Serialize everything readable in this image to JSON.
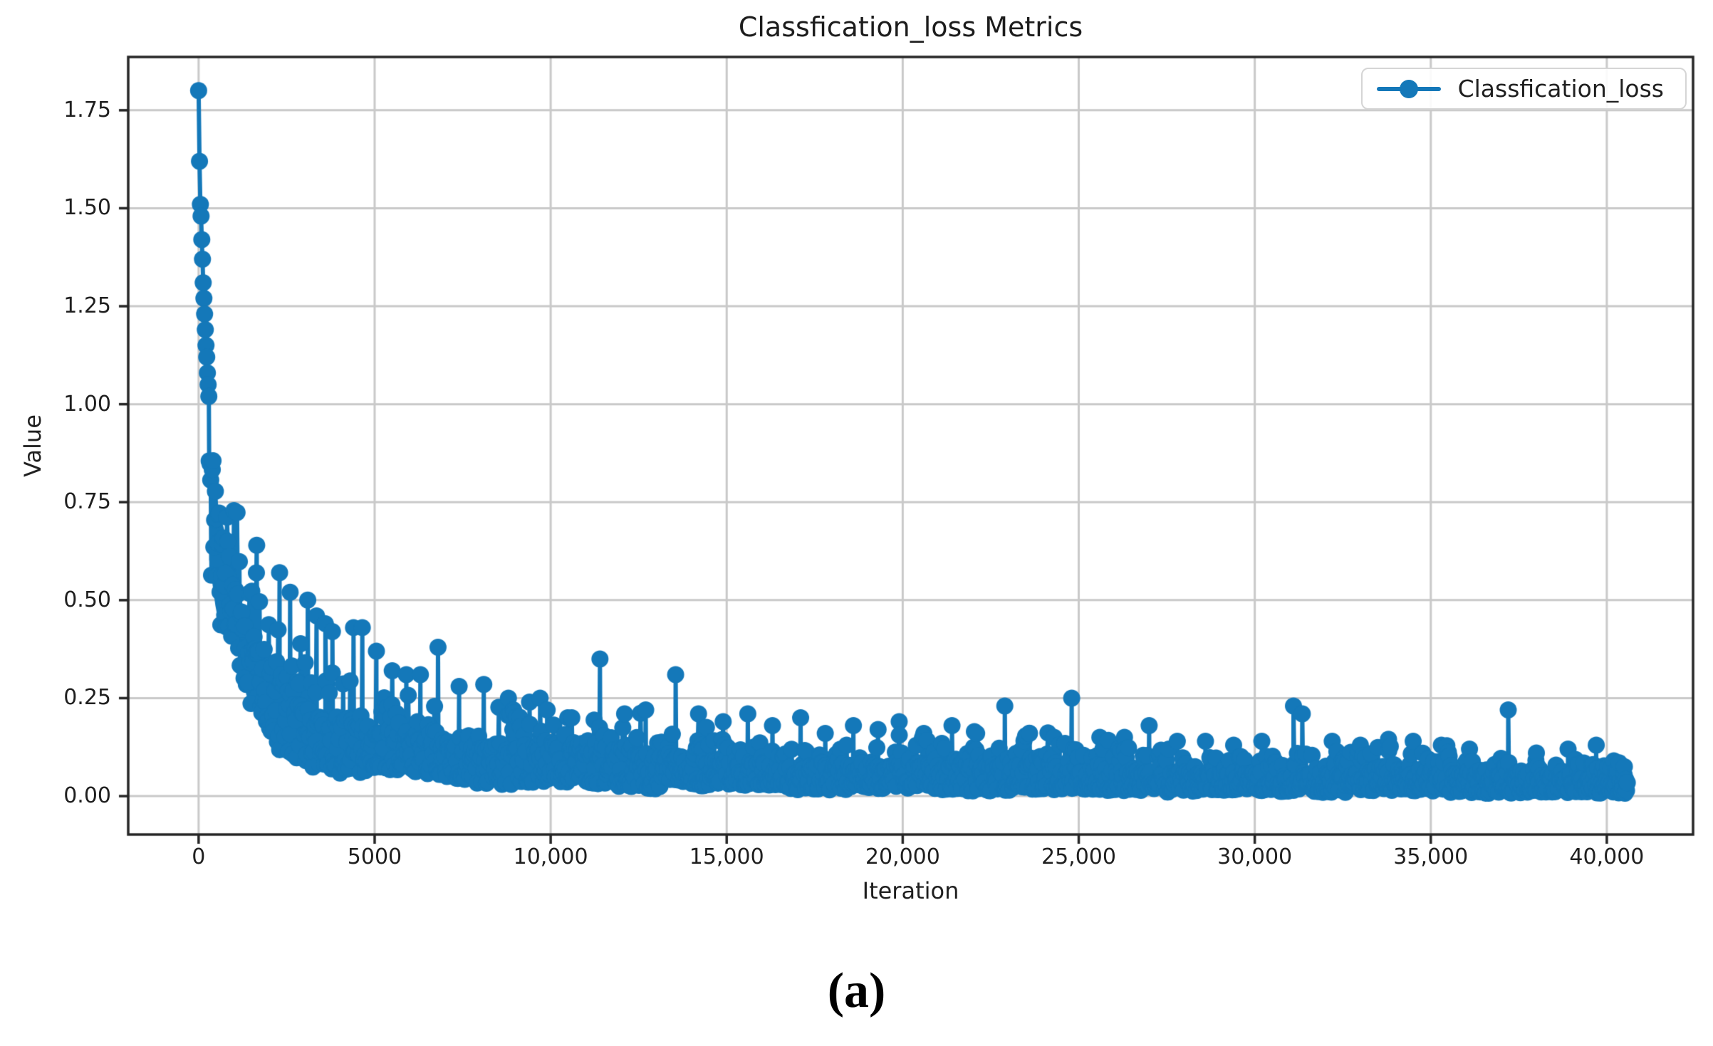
{
  "figure": {
    "title": "Classfication_loss Metrics",
    "caption": "(a)",
    "xlabel": "Iteration",
    "ylabel": "Value"
  },
  "legend": {
    "label": "Classfication_loss",
    "position": "upper right"
  },
  "chart_data": {
    "type": "line",
    "title": "Classfication_loss Metrics",
    "xlabel": "Iteration",
    "ylabel": "Value",
    "legend_entries": [
      "Classfication_loss"
    ],
    "grid": true,
    "xlim": [
      -2000,
      42450
    ],
    "ylim": [
      -0.098,
      1.886
    ],
    "x_ticks": {
      "values": [
        0,
        5000,
        10000,
        15000,
        20000,
        25000,
        30000,
        35000,
        40000
      ],
      "labels": [
        "0",
        "5000",
        "10,000",
        "15,000",
        "20,000",
        "25,000",
        "30,000",
        "35,000",
        "40,000"
      ]
    },
    "y_ticks": {
      "values": [
        0.0,
        0.25,
        0.5,
        0.75,
        1.0,
        1.25,
        1.5,
        1.75
      ],
      "labels": [
        "0.00",
        "0.25",
        "0.50",
        "0.75",
        "1.00",
        "1.25",
        "1.50",
        "1.75"
      ]
    },
    "colors": {
      "line": "#1478b9",
      "grid": "#c9c9c9",
      "axis": "#262626",
      "text": "#1f1f1f"
    },
    "series": [
      {
        "name": "Classfication_loss",
        "color": "#1478b9",
        "marker": "o",
        "marker_radius": 12,
        "line_width": 6,
        "x_start": 0,
        "x_end": 40600,
        "sample_step": 22,
        "seed": 7,
        "initial_points": [
          [
            0,
            1.8
          ],
          [
            25,
            1.62
          ],
          [
            50,
            1.51
          ],
          [
            70,
            1.48
          ],
          [
            90,
            1.42
          ],
          [
            110,
            1.37
          ],
          [
            130,
            1.31
          ],
          [
            150,
            1.27
          ],
          [
            170,
            1.23
          ],
          [
            190,
            1.19
          ],
          [
            210,
            1.15
          ],
          [
            230,
            1.12
          ],
          [
            250,
            1.08
          ],
          [
            270,
            1.05
          ],
          [
            290,
            1.02
          ]
        ],
        "band_envelope": [
          [
            300,
            1.02,
            0.52
          ],
          [
            500,
            0.92,
            0.44
          ],
          [
            700,
            0.84,
            0.38
          ],
          [
            1000,
            0.74,
            0.3
          ],
          [
            1400,
            0.64,
            0.22
          ],
          [
            1800,
            0.56,
            0.17
          ],
          [
            2200,
            0.5,
            0.13
          ],
          [
            2700,
            0.46,
            0.105
          ],
          [
            3200,
            0.42,
            0.09
          ],
          [
            3800,
            0.38,
            0.078
          ],
          [
            4500,
            0.34,
            0.068
          ],
          [
            5500,
            0.3,
            0.058
          ],
          [
            6500,
            0.27,
            0.05
          ],
          [
            7500,
            0.25,
            0.044
          ],
          [
            8500,
            0.235,
            0.039
          ],
          [
            10000,
            0.215,
            0.033
          ],
          [
            11500,
            0.2,
            0.029
          ],
          [
            13000,
            0.19,
            0.026
          ],
          [
            15000,
            0.175,
            0.023
          ],
          [
            17000,
            0.165,
            0.021
          ],
          [
            19000,
            0.155,
            0.019
          ],
          [
            21000,
            0.15,
            0.017
          ],
          [
            23000,
            0.145,
            0.016
          ],
          [
            25000,
            0.14,
            0.015
          ],
          [
            27000,
            0.135,
            0.014
          ],
          [
            29000,
            0.125,
            0.013
          ],
          [
            31000,
            0.12,
            0.012
          ],
          [
            33000,
            0.115,
            0.011
          ],
          [
            35000,
            0.11,
            0.01
          ],
          [
            37000,
            0.105,
            0.009
          ],
          [
            39000,
            0.1,
            0.008
          ],
          [
            40600,
            0.095,
            0.008
          ]
        ],
        "spike_points": [
          [
            1650,
            0.64
          ],
          [
            2300,
            0.57
          ],
          [
            2600,
            0.52
          ],
          [
            3100,
            0.5
          ],
          [
            3350,
            0.46
          ],
          [
            3600,
            0.44
          ],
          [
            3800,
            0.42
          ],
          [
            4400,
            0.43
          ],
          [
            4650,
            0.43
          ],
          [
            5050,
            0.37
          ],
          [
            5500,
            0.32
          ],
          [
            5900,
            0.31
          ],
          [
            6300,
            0.31
          ],
          [
            6800,
            0.38
          ],
          [
            7400,
            0.28
          ],
          [
            8100,
            0.285
          ],
          [
            8800,
            0.25
          ],
          [
            9400,
            0.24
          ],
          [
            9700,
            0.25
          ],
          [
            9900,
            0.22
          ],
          [
            10600,
            0.2
          ],
          [
            11400,
            0.35
          ],
          [
            12100,
            0.21
          ],
          [
            12700,
            0.22
          ],
          [
            13550,
            0.31
          ],
          [
            14200,
            0.21
          ],
          [
            14900,
            0.19
          ],
          [
            15600,
            0.21
          ],
          [
            16300,
            0.18
          ],
          [
            17100,
            0.2
          ],
          [
            17800,
            0.16
          ],
          [
            18600,
            0.18
          ],
          [
            19300,
            0.17
          ],
          [
            19900,
            0.19
          ],
          [
            20600,
            0.16
          ],
          [
            21400,
            0.18
          ],
          [
            22100,
            0.16
          ],
          [
            22900,
            0.23
          ],
          [
            23600,
            0.16
          ],
          [
            24300,
            0.15
          ],
          [
            24800,
            0.25
          ],
          [
            25600,
            0.15
          ],
          [
            26300,
            0.15
          ],
          [
            27000,
            0.18
          ],
          [
            27800,
            0.14
          ],
          [
            28600,
            0.14
          ],
          [
            29400,
            0.13
          ],
          [
            30200,
            0.14
          ],
          [
            31100,
            0.23
          ],
          [
            31350,
            0.21
          ],
          [
            32200,
            0.14
          ],
          [
            33000,
            0.13
          ],
          [
            33800,
            0.145
          ],
          [
            34500,
            0.14
          ],
          [
            35300,
            0.13
          ],
          [
            36100,
            0.12
          ],
          [
            37200,
            0.22
          ],
          [
            38000,
            0.11
          ],
          [
            38900,
            0.12
          ],
          [
            39700,
            0.13
          ],
          [
            40200,
            0.09
          ],
          [
            40350,
            0.085
          ],
          [
            40500,
            0.075
          ]
        ]
      }
    ]
  }
}
